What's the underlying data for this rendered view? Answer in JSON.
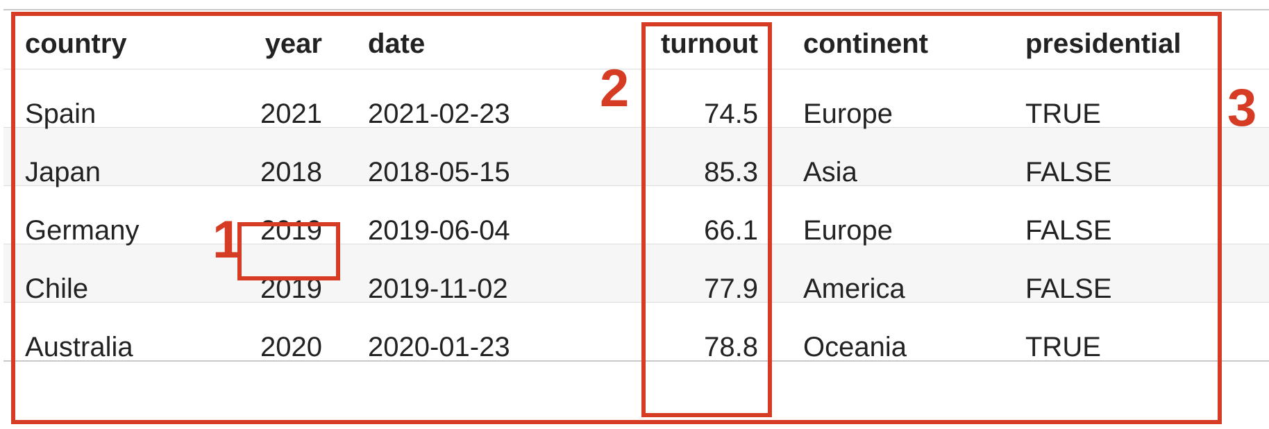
{
  "table": {
    "columns": [
      "country",
      "year",
      "date",
      "turnout",
      "continent",
      "presidential"
    ],
    "rows": [
      [
        "Spain",
        "2021",
        "2021-02-23",
        "74.5",
        "Europe",
        "TRUE"
      ],
      [
        "Japan",
        "2018",
        "2018-05-15",
        "85.3",
        "Asia",
        "FALSE"
      ],
      [
        "Germany",
        "2019",
        "2019-06-04",
        "66.1",
        "Europe",
        "FALSE"
      ],
      [
        "Chile",
        "2019",
        "2019-11-02",
        "77.9",
        "America",
        "FALSE"
      ],
      [
        "Australia",
        "2020",
        "2020-01-23",
        "78.8",
        "Oceania",
        "TRUE"
      ]
    ]
  },
  "annotations": {
    "label_1": "1",
    "label_2": "2",
    "label_3": "3",
    "color": "#d63b24"
  },
  "colors": {
    "stripe": "#f6f6f6",
    "rule": "#dcdcdc",
    "text": "#222222"
  }
}
